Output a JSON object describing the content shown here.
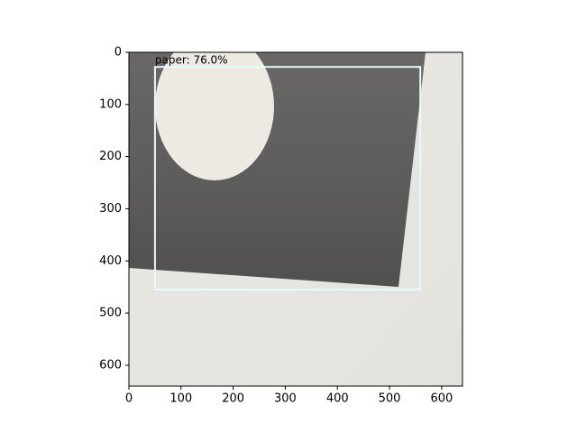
{
  "chart_data": {
    "type": "image",
    "xlim": [
      0,
      640
    ],
    "ylim": [
      640,
      0
    ],
    "xticks": [
      0,
      100,
      200,
      300,
      400,
      500,
      600
    ],
    "yticks": [
      0,
      100,
      200,
      300,
      400,
      500,
      600
    ],
    "boxes": [
      {
        "label": "paper: 76.0%",
        "xmin": 50,
        "ymin": 28,
        "xmax": 559,
        "ymax": 455,
        "color": "#e3fbfb"
      }
    ]
  }
}
